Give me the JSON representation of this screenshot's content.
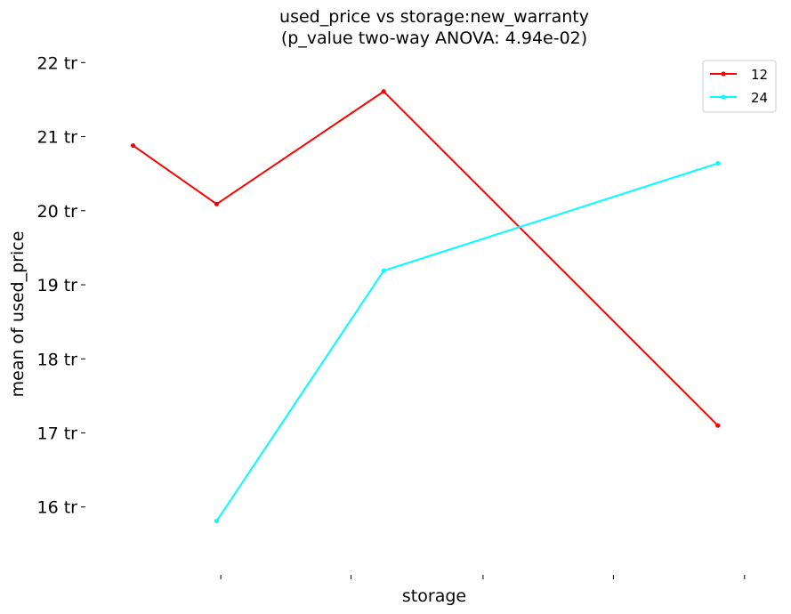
{
  "chart_data": {
    "type": "line",
    "title": "used_price vs storage:new_warranty",
    "subtitle": "(p_value two-way ANOVA: 4.94e-02)",
    "xlabel": "storage",
    "ylabel": "mean of used_price",
    "x": [
      1,
      2,
      4,
      8
    ],
    "xlim": [
      0.44,
      8.78
    ],
    "ylim": [
      15.3,
      22.1
    ],
    "yticks": [
      16,
      17,
      18,
      19,
      20,
      21,
      22
    ],
    "ytick_labels": [
      "16 tr",
      "17 tr",
      "18 tr",
      "19 tr",
      "20 tr",
      "21 tr",
      "22 tr"
    ],
    "xticks": [
      2.05,
      3.61,
      5.19,
      6.75,
      8.32
    ],
    "grid": false,
    "legend_position": "top-right",
    "series": [
      {
        "name": "12",
        "color": "#ff0000",
        "x": [
          1,
          2,
          4,
          8
        ],
        "values": [
          20.88,
          20.09,
          21.61,
          17.1
        ]
      },
      {
        "name": "24",
        "color": "#00ffff",
        "x": [
          2,
          4,
          8
        ],
        "values": [
          15.81,
          19.19,
          20.64
        ]
      }
    ]
  }
}
